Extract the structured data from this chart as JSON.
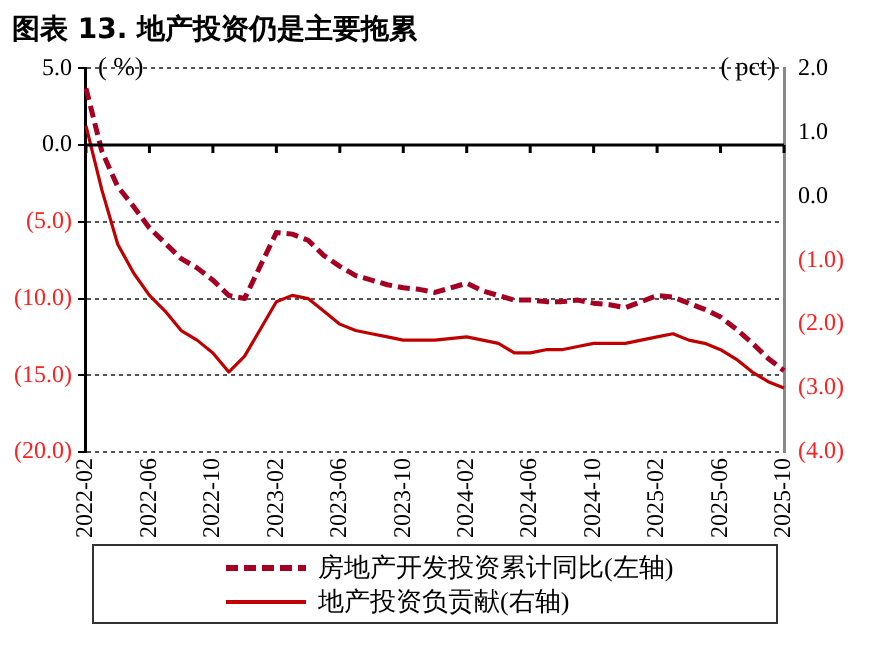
{
  "chart_data": {
    "type": "line",
    "title": "图表 13. 地产投资仍是主要拖累",
    "ylabel": "( %)",
    "y2label": "( pct)",
    "categories": [
      "2022-02",
      null,
      null,
      null,
      "2022-06",
      null,
      null,
      null,
      "2022-10",
      null,
      null,
      null,
      "2023-02",
      null,
      null,
      null,
      "2023-06",
      null,
      null,
      null,
      "2023-10",
      null,
      null,
      null,
      "2024-02",
      null,
      null,
      null,
      "2024-06",
      null,
      null,
      null,
      "2024-10",
      null,
      null,
      null,
      "2025-02",
      null,
      null,
      null,
      "2025-06",
      null,
      null,
      null,
      "2025-10"
    ],
    "series": [
      {
        "name": "房地产开发投资累计同比(左轴)",
        "color": "#a50021",
        "line_style": "dashed",
        "values": [
          3.7,
          -0.4,
          -2.7,
          -4.0,
          -5.4,
          -6.4,
          -7.4,
          -8.0,
          -8.8,
          -9.8,
          -10.0,
          null,
          -5.7,
          -5.8,
          -6.2,
          -7.2,
          -7.9,
          -8.5,
          -8.8,
          -9.1,
          -9.3,
          -9.4,
          -9.6,
          null,
          -9.0,
          -9.5,
          -9.8,
          -10.1,
          -10.1,
          -10.2,
          -10.2,
          -10.1,
          -10.3,
          -10.4,
          -10.6,
          null,
          -9.8,
          -9.9,
          -10.3,
          -10.7,
          -11.2,
          -12.0,
          -12.9,
          -13.9,
          -14.7
        ]
      },
      {
        "name": "地产投资负贡献(右轴)",
        "color": "#c00000",
        "line_style": "solid",
        "axis": "y2",
        "values": [
          1.1,
          0.1,
          -0.75,
          -1.2,
          -1.55,
          -1.8,
          -2.1,
          -2.25,
          -2.45,
          -2.75,
          -2.5,
          null,
          -1.65,
          -1.55,
          -1.6,
          -1.8,
          -2.0,
          -2.1,
          -2.15,
          -2.2,
          -2.25,
          -2.25,
          -2.25,
          null,
          -2.2,
          -2.25,
          -2.3,
          -2.45,
          -2.45,
          -2.4,
          -2.4,
          -2.35,
          -2.3,
          -2.3,
          -2.3,
          null,
          -2.2,
          -2.15,
          -2.25,
          -2.3,
          -2.4,
          -2.55,
          -2.75,
          -2.9,
          -3.0
        ]
      }
    ],
    "ylim": [
      -20,
      5
    ],
    "yticks": [
      {
        "value": 5,
        "label": "5.0"
      },
      {
        "value": 0,
        "label": "0.0"
      },
      {
        "value": -5,
        "label": "(5.0)"
      },
      {
        "value": -10,
        "label": "(10.0)"
      },
      {
        "value": -15,
        "label": "(15.0)"
      },
      {
        "value": -20,
        "label": "(20.0)"
      }
    ],
    "y2lim": [
      -4,
      2
    ],
    "y2ticks": [
      {
        "value": 2,
        "label": "2.0"
      },
      {
        "value": 1,
        "label": "1.0"
      },
      {
        "value": 0,
        "label": "0.0"
      },
      {
        "value": -1,
        "label": "(1.0)"
      },
      {
        "value": -2,
        "label": "(2.0)"
      },
      {
        "value": -3,
        "label": "(3.0)"
      },
      {
        "value": -4,
        "label": "(4.0)"
      }
    ],
    "grid": "y",
    "legend": "bottom",
    "marker": "none"
  }
}
